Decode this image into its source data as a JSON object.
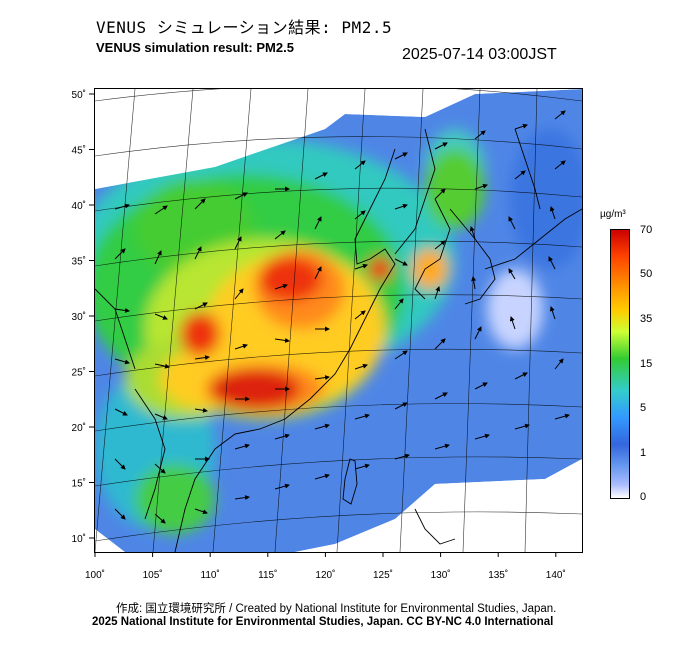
{
  "header": {
    "title_jp": "VENUS シミュレーション結果: PM2.5",
    "title_en": "VENUS simulation result: PM2.5",
    "timestamp": "2025-07-14 03:00JST"
  },
  "map": {
    "variable": "PM2.5",
    "lon_ticks": [
      "100˚",
      "105˚",
      "110˚",
      "115˚",
      "120˚",
      "125˚",
      "130˚",
      "135˚",
      "140˚"
    ],
    "lat_ticks": [
      "50˚",
      "45˚",
      "40˚",
      "35˚",
      "30˚",
      "25˚",
      "20˚",
      "15˚",
      "10˚"
    ],
    "lon_range": [
      100,
      140
    ],
    "lat_range": [
      10,
      50
    ],
    "features": [
      "coastline",
      "graticule",
      "wind-vectors",
      "concentration-field"
    ]
  },
  "colorbar": {
    "unit": "µg/m³",
    "labels": [
      "70",
      "50",
      "35",
      "15",
      "5",
      "1",
      "0"
    ],
    "colors": [
      "#cc0000",
      "#ff4400",
      "#ff9900",
      "#ffcc00",
      "#ccff33",
      "#33cc33",
      "#33cccc",
      "#3399ff",
      "#3366dd",
      "#6699ee",
      "#aabbff",
      "#ffffff"
    ]
  },
  "footer": {
    "credit_jp_en": "作成: 国立環境研究所 / Created by National Institute for Environmental Studies, Japan.",
    "copyright": "2025 National Institute for Environmental Studies, Japan. CC BY-NC 4.0 International"
  }
}
